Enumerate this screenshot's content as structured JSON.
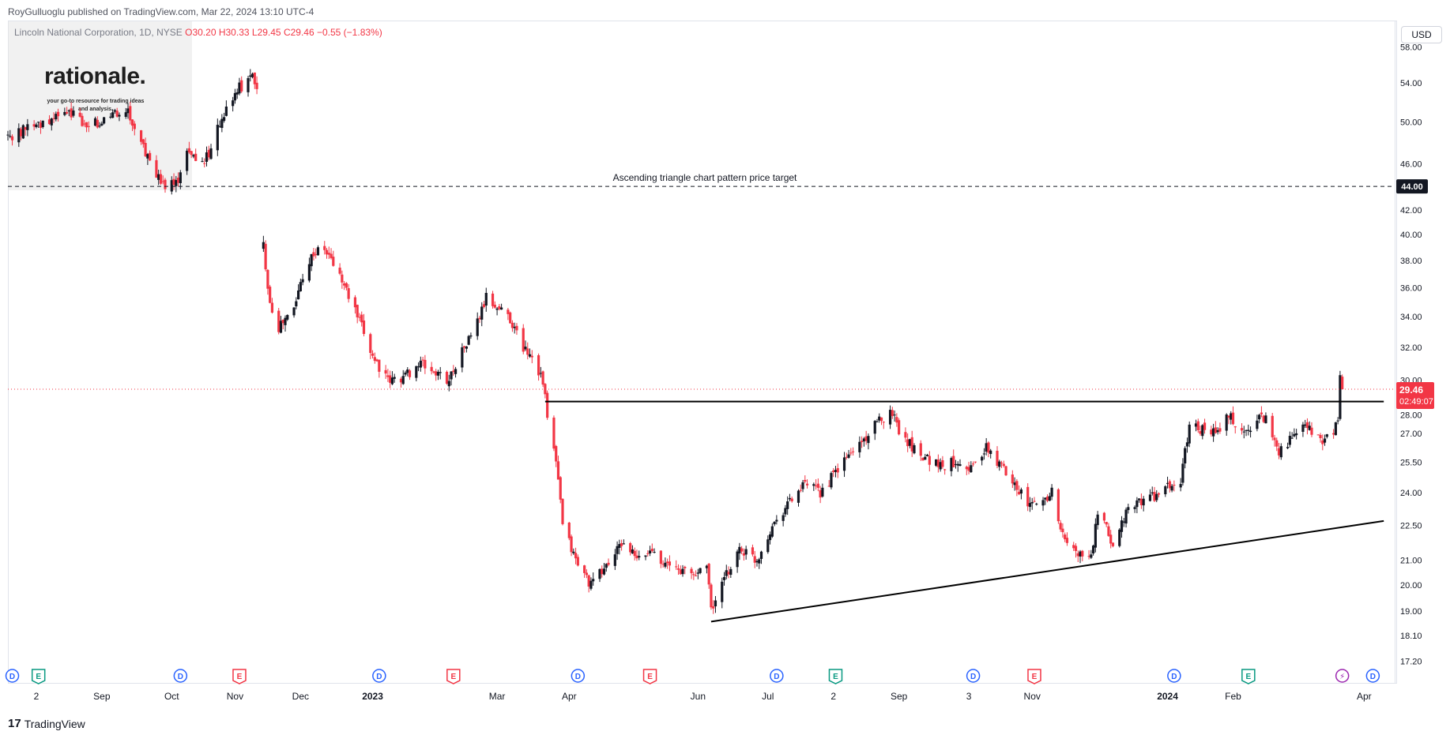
{
  "publisher_line": "RoyGulluoglu published on TradingView.com, Mar 22, 2024 13:10 UTC-4",
  "legend": {
    "symbol": "Lincoln National Corporation, 1D, NYSE",
    "open": "O30.20",
    "high": "H30.33",
    "low": "L29.45",
    "close": "C29.46",
    "change": "−0.55 (−1.83%)"
  },
  "logo": {
    "title": "rationale.",
    "tagline": "your go-to resource for trading ideas and analysis."
  },
  "currency_label": "USD",
  "watermark": "TradingView",
  "colors": {
    "up": "#131722",
    "down": "#f23645",
    "price_label_bg": "#f23645",
    "target_label_bg": "#131722",
    "dividend": "#2962ff",
    "earnings_past": "#f23645",
    "earnings_future": "#089981",
    "split": "#9c27b0"
  },
  "chart_data": {
    "type": "candlestick",
    "title": "Lincoln National Corporation, 1D, NYSE",
    "y_scale": "log",
    "ylim": [
      17.0,
      61.0
    ],
    "y_ticks": [
      "58.00",
      "54.00",
      "50.00",
      "46.00",
      "42.00",
      "40.00",
      "38.00",
      "36.00",
      "34.00",
      "32.00",
      "30.00",
      "28.00",
      "27.00",
      "25.50",
      "24.00",
      "22.50",
      "21.00",
      "20.00",
      "19.00",
      "18.10",
      "17.20"
    ],
    "x_range": [
      "2022-07-20",
      "2024-04-15"
    ],
    "x_ticks": [
      {
        "date": "2022-08-02",
        "label": "2",
        "bold": false
      },
      {
        "date": "2022-09-01",
        "label": "Sep",
        "bold": false
      },
      {
        "date": "2022-10-03",
        "label": "Oct",
        "bold": false
      },
      {
        "date": "2022-11-01",
        "label": "Nov",
        "bold": false
      },
      {
        "date": "2022-12-01",
        "label": "Dec",
        "bold": false
      },
      {
        "date": "2023-01-03",
        "label": "2023",
        "bold": true
      },
      {
        "date": "2023-03-01",
        "label": "Mar",
        "bold": false
      },
      {
        "date": "2023-04-03",
        "label": "Apr",
        "bold": false
      },
      {
        "date": "2023-06-01",
        "label": "Jun",
        "bold": false
      },
      {
        "date": "2023-07-03",
        "label": "Jul",
        "bold": false
      },
      {
        "date": "2023-08-02",
        "label": "2",
        "bold": false
      },
      {
        "date": "2023-09-01",
        "label": "Sep",
        "bold": false
      },
      {
        "date": "2023-10-03",
        "label": "3",
        "bold": false
      },
      {
        "date": "2023-11-01",
        "label": "Nov",
        "bold": false
      },
      {
        "date": "2024-01-02",
        "label": "2024",
        "bold": true
      },
      {
        "date": "2024-02-01",
        "label": "Feb",
        "bold": false
      },
      {
        "date": "2024-04-01",
        "label": "Apr",
        "bold": false
      }
    ],
    "anchors": [
      [
        "2022-07-20",
        48.5
      ],
      [
        "2022-08-05",
        50.0
      ],
      [
        "2022-08-18",
        51.0
      ],
      [
        "2022-08-26",
        49.5
      ],
      [
        "2022-09-12",
        51.5
      ],
      [
        "2022-09-22",
        46.5
      ],
      [
        "2022-09-29",
        44.0
      ],
      [
        "2022-10-06",
        44.8
      ],
      [
        "2022-10-10",
        47.5
      ],
      [
        "2022-10-18",
        46.0
      ],
      [
        "2022-10-26",
        50.5
      ],
      [
        "2022-11-03",
        53.5
      ],
      [
        "2022-11-09",
        54.5
      ],
      [
        "2022-11-11",
        53.0
      ],
      [
        "2022-11-14",
        39.0
      ],
      [
        "2022-11-17",
        35.0
      ],
      [
        "2022-11-21",
        33.3
      ],
      [
        "2022-11-28",
        34.5
      ],
      [
        "2022-12-02",
        37.0
      ],
      [
        "2022-12-07",
        38.6
      ],
      [
        "2022-12-12",
        38.8
      ],
      [
        "2022-12-16",
        37.8
      ],
      [
        "2022-12-20",
        36.5
      ],
      [
        "2022-12-27",
        34.0
      ],
      [
        "2023-01-03",
        31.5
      ],
      [
        "2023-01-10",
        29.9
      ],
      [
        "2023-01-17",
        30.2
      ],
      [
        "2023-01-25",
        31.0
      ],
      [
        "2023-02-02",
        30.3
      ],
      [
        "2023-02-07",
        30.0
      ],
      [
        "2023-02-10",
        31.0
      ],
      [
        "2023-02-16",
        32.5
      ],
      [
        "2023-02-21",
        34.0
      ],
      [
        "2023-02-24",
        35.3
      ],
      [
        "2023-03-01",
        34.6
      ],
      [
        "2023-03-06",
        34.2
      ],
      [
        "2023-03-09",
        33.2
      ],
      [
        "2023-03-13",
        32.0
      ],
      [
        "2023-03-17",
        31.5
      ],
      [
        "2023-03-22",
        30.0
      ],
      [
        "2023-03-24",
        27.8
      ],
      [
        "2023-03-28",
        25.5
      ],
      [
        "2023-03-31",
        22.5
      ],
      [
        "2023-04-06",
        21.0
      ],
      [
        "2023-04-13",
        20.0
      ],
      [
        "2023-04-21",
        20.9
      ],
      [
        "2023-04-28",
        21.8
      ],
      [
        "2023-05-04",
        21.0
      ],
      [
        "2023-05-12",
        21.5
      ],
      [
        "2023-05-17",
        20.8
      ],
      [
        "2023-05-24",
        20.6
      ],
      [
        "2023-05-31",
        20.4
      ],
      [
        "2023-06-05",
        21.0
      ],
      [
        "2023-06-07",
        19.0
      ],
      [
        "2023-06-13",
        20.2
      ],
      [
        "2023-06-20",
        21.5
      ],
      [
        "2023-06-28",
        21.0
      ],
      [
        "2023-07-05",
        22.5
      ],
      [
        "2023-07-12",
        23.5
      ],
      [
        "2023-07-20",
        24.4
      ],
      [
        "2023-07-27",
        24.0
      ],
      [
        "2023-08-03",
        25.0
      ],
      [
        "2023-08-10",
        26.0
      ],
      [
        "2023-08-17",
        26.8
      ],
      [
        "2023-08-24",
        27.8
      ],
      [
        "2023-08-29",
        28.2
      ],
      [
        "2023-09-01",
        27.2
      ],
      [
        "2023-09-07",
        26.3
      ],
      [
        "2023-09-14",
        25.7
      ],
      [
        "2023-09-21",
        25.3
      ],
      [
        "2023-09-28",
        25.6
      ],
      [
        "2023-10-04",
        25.2
      ],
      [
        "2023-10-11",
        26.2
      ],
      [
        "2023-10-16",
        25.5
      ],
      [
        "2023-10-23",
        24.7
      ],
      [
        "2023-10-30",
        23.4
      ],
      [
        "2023-11-06",
        23.6
      ],
      [
        "2023-11-10",
        24.1
      ],
      [
        "2023-11-15",
        22.0
      ],
      [
        "2023-11-21",
        21.3
      ],
      [
        "2023-11-28",
        21.1
      ],
      [
        "2023-12-01",
        23.0
      ],
      [
        "2023-12-05",
        22.3
      ],
      [
        "2023-12-08",
        21.6
      ],
      [
        "2023-12-13",
        22.9
      ],
      [
        "2023-12-20",
        23.6
      ],
      [
        "2023-12-28",
        23.9
      ],
      [
        "2024-01-03",
        24.3
      ],
      [
        "2024-01-08",
        24.5
      ],
      [
        "2024-01-12",
        27.5
      ],
      [
        "2024-01-18",
        27.2
      ],
      [
        "2024-01-25",
        27.0
      ],
      [
        "2024-01-30",
        28.0
      ],
      [
        "2024-02-02",
        27.4
      ],
      [
        "2024-02-07",
        27.0
      ],
      [
        "2024-02-12",
        27.9
      ],
      [
        "2024-02-16",
        27.8
      ],
      [
        "2024-02-22",
        26.1
      ],
      [
        "2024-02-28",
        26.7
      ],
      [
        "2024-03-04",
        27.3
      ],
      [
        "2024-03-08",
        27.1
      ],
      [
        "2024-03-13",
        26.5
      ],
      [
        "2024-03-18",
        27.2
      ],
      [
        "2024-03-20",
        27.5
      ],
      [
        "2024-03-21",
        30.0
      ],
      [
        "2024-03-22",
        29.5
      ]
    ],
    "last_candle": {
      "date": "2024-03-22",
      "open": 30.2,
      "high": 30.33,
      "low": 29.45,
      "close": 29.46
    },
    "last_price": {
      "value": 29.46,
      "label": "29.46",
      "countdown": "02:49:07"
    },
    "drawings": [
      {
        "type": "horizontal_line",
        "style": "dashed",
        "price": 44.0,
        "label": "Ascending triangle chart pattern price target",
        "axis_label": "44.00"
      },
      {
        "type": "trend_line",
        "from": [
          "2023-03-23",
          28.75
        ],
        "to": [
          "2024-04-10",
          28.75
        ]
      },
      {
        "type": "trend_line",
        "from": [
          "2023-06-07",
          18.6
        ],
        "to": [
          "2024-04-10",
          22.7
        ]
      }
    ],
    "events": [
      {
        "date": "2022-07-22",
        "kind": "D"
      },
      {
        "date": "2022-08-03",
        "kind": "E"
      },
      {
        "date": "2022-10-07",
        "kind": "D"
      },
      {
        "date": "2022-11-03",
        "kind": "E"
      },
      {
        "date": "2023-01-06",
        "kind": "D"
      },
      {
        "date": "2023-02-09",
        "kind": "E"
      },
      {
        "date": "2023-04-07",
        "kind": "D"
      },
      {
        "date": "2023-05-10",
        "kind": "E"
      },
      {
        "date": "2023-07-07",
        "kind": "D"
      },
      {
        "date": "2023-08-03",
        "kind": "E"
      },
      {
        "date": "2023-10-05",
        "kind": "D"
      },
      {
        "date": "2023-11-02",
        "kind": "E"
      },
      {
        "date": "2024-01-05",
        "kind": "D"
      },
      {
        "date": "2024-02-08",
        "kind": "E"
      },
      {
        "date": "2024-03-22",
        "kind": "split",
        "glyph": "⚡"
      },
      {
        "date": "2024-04-05",
        "kind": "D"
      }
    ]
  }
}
